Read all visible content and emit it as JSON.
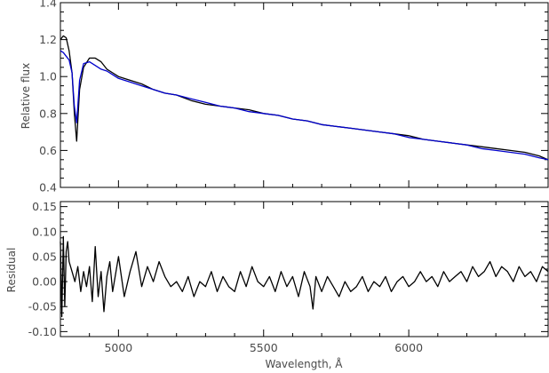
{
  "chart_data": [
    {
      "type": "line",
      "panel": "top",
      "title": "",
      "xlabel": "",
      "ylabel": "Relative flux",
      "xlim": [
        4800,
        6480
      ],
      "ylim": [
        0.4,
        1.4
      ],
      "grid": false,
      "legend": "none",
      "x_ticks": [
        5000,
        5500,
        6000
      ],
      "y_ticks": [
        0.4,
        0.6,
        0.8,
        1.0,
        1.2,
        1.4
      ],
      "y_tick_labels": [
        "0.4",
        "0.6",
        "0.8",
        "1.0",
        "1.2",
        "1.4"
      ],
      "series": [
        {
          "color": "#000000",
          "x": [
            4800,
            4810,
            4820,
            4830,
            4840,
            4848,
            4856,
            4866,
            4880,
            4900,
            4920,
            4940,
            4960,
            4980,
            5000,
            5040,
            5080,
            5120,
            5160,
            5200,
            5250,
            5300,
            5350,
            5400,
            5450,
            5500,
            5550,
            5600,
            5650,
            5700,
            5750,
            5800,
            5850,
            5900,
            5950,
            6000,
            6050,
            6100,
            6150,
            6200,
            6250,
            6300,
            6350,
            6400,
            6450,
            6480
          ],
          "y": [
            1.2,
            1.22,
            1.21,
            1.14,
            1.02,
            0.8,
            0.65,
            0.93,
            1.05,
            1.1,
            1.1,
            1.08,
            1.04,
            1.02,
            1.0,
            0.98,
            0.96,
            0.93,
            0.91,
            0.9,
            0.87,
            0.85,
            0.84,
            0.83,
            0.82,
            0.8,
            0.79,
            0.77,
            0.76,
            0.74,
            0.73,
            0.72,
            0.71,
            0.7,
            0.69,
            0.68,
            0.66,
            0.65,
            0.64,
            0.63,
            0.62,
            0.61,
            0.6,
            0.59,
            0.57,
            0.55
          ]
        },
        {
          "color": "#0000cc",
          "x": [
            4800,
            4810,
            4820,
            4830,
            4840,
            4848,
            4856,
            4866,
            4880,
            4900,
            4920,
            4940,
            4960,
            4980,
            5000,
            5040,
            5080,
            5120,
            5160,
            5200,
            5250,
            5300,
            5350,
            5400,
            5450,
            5500,
            5550,
            5600,
            5650,
            5700,
            5750,
            5800,
            5850,
            5900,
            5950,
            6000,
            6050,
            6100,
            6150,
            6200,
            6250,
            6300,
            6350,
            6400,
            6450,
            6480
          ],
          "y": [
            1.14,
            1.13,
            1.11,
            1.09,
            1.02,
            0.84,
            0.75,
            0.98,
            1.07,
            1.08,
            1.06,
            1.04,
            1.03,
            1.01,
            0.99,
            0.97,
            0.95,
            0.93,
            0.91,
            0.9,
            0.88,
            0.86,
            0.84,
            0.83,
            0.81,
            0.8,
            0.79,
            0.77,
            0.76,
            0.74,
            0.73,
            0.72,
            0.71,
            0.7,
            0.69,
            0.67,
            0.66,
            0.65,
            0.64,
            0.63,
            0.61,
            0.6,
            0.59,
            0.58,
            0.56,
            0.55
          ]
        }
      ]
    },
    {
      "type": "line",
      "panel": "bottom",
      "title": "",
      "xlabel": "Wavelength, Å",
      "ylabel": "Residual",
      "xlim": [
        4800,
        6480
      ],
      "ylim": [
        -0.11,
        0.16
      ],
      "grid": false,
      "legend": "none",
      "x_ticks": [
        5000,
        5500,
        6000
      ],
      "y_ticks": [
        -0.1,
        -0.05,
        0.0,
        0.05,
        0.1,
        0.15
      ],
      "y_tick_labels": [
        "-0.10",
        "-0.05",
        "0.00",
        "0.05",
        "0.10",
        "0.15"
      ],
      "series": [
        {
          "color": "#000000",
          "x": [
            4800,
            4805,
            4810,
            4815,
            4820,
            4825,
            4830,
            4840,
            4850,
            4860,
            4870,
            4880,
            4890,
            4900,
            4910,
            4920,
            4930,
            4940,
            4950,
            4960,
            4970,
            4980,
            5000,
            5020,
            5040,
            5060,
            5080,
            5100,
            5120,
            5140,
            5160,
            5180,
            5200,
            5220,
            5240,
            5260,
            5280,
            5300,
            5320,
            5340,
            5360,
            5380,
            5400,
            5420,
            5440,
            5460,
            5480,
            5500,
            5520,
            5540,
            5560,
            5580,
            5600,
            5620,
            5640,
            5660,
            5670,
            5680,
            5700,
            5720,
            5740,
            5760,
            5780,
            5800,
            5820,
            5840,
            5860,
            5880,
            5900,
            5920,
            5940,
            5960,
            5980,
            6000,
            6020,
            6040,
            6060,
            6080,
            6100,
            6120,
            6140,
            6160,
            6180,
            6200,
            6220,
            6240,
            6260,
            6280,
            6300,
            6320,
            6340,
            6360,
            6380,
            6400,
            6420,
            6440,
            6460,
            6480
          ],
          "y": [
            0.08,
            -0.07,
            0.09,
            -0.05,
            0.06,
            0.08,
            0.04,
            0.02,
            0.0,
            0.03,
            -0.02,
            0.02,
            -0.01,
            0.03,
            -0.04,
            0.07,
            -0.03,
            0.02,
            -0.06,
            0.01,
            0.04,
            -0.02,
            0.05,
            -0.03,
            0.02,
            0.06,
            -0.01,
            0.03,
            0.0,
            0.04,
            0.01,
            -0.01,
            0.0,
            -0.02,
            0.01,
            -0.03,
            0.0,
            -0.01,
            0.02,
            -0.02,
            0.01,
            -0.01,
            -0.02,
            0.02,
            -0.01,
            0.03,
            0.0,
            -0.01,
            0.01,
            -0.02,
            0.02,
            -0.01,
            0.01,
            -0.03,
            0.02,
            -0.01,
            -0.055,
            0.01,
            -0.02,
            0.01,
            -0.01,
            -0.03,
            0.0,
            -0.02,
            -0.01,
            0.01,
            -0.02,
            0.0,
            -0.01,
            0.01,
            -0.02,
            0.0,
            0.01,
            -0.01,
            0.0,
            0.02,
            0.0,
            0.01,
            -0.01,
            0.02,
            0.0,
            0.01,
            0.02,
            0.0,
            0.03,
            0.01,
            0.02,
            0.04,
            0.01,
            0.03,
            0.02,
            0.0,
            0.03,
            0.01,
            0.02,
            0.0,
            0.03,
            0.02
          ]
        }
      ]
    }
  ]
}
